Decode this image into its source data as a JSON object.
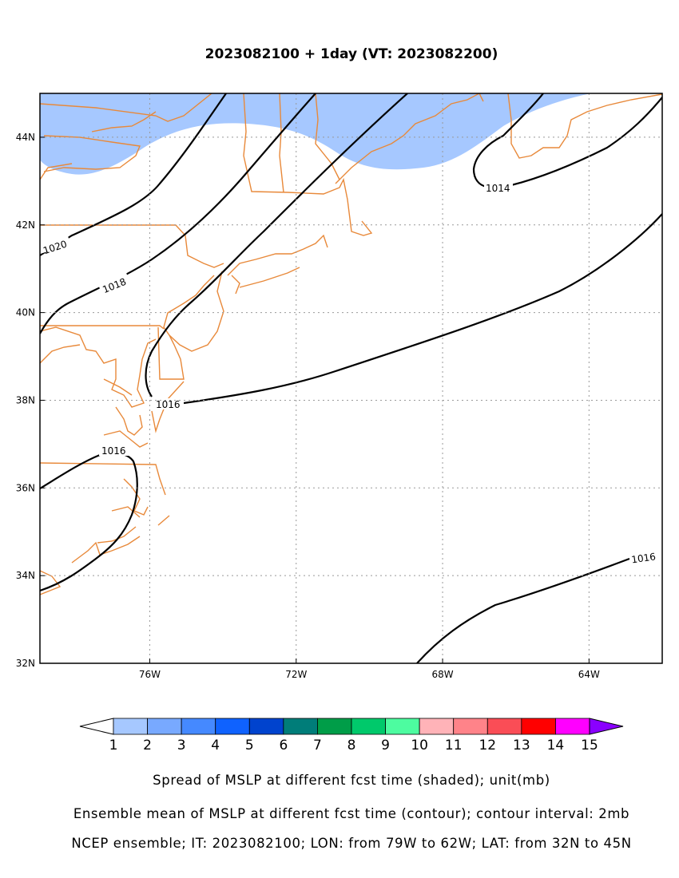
{
  "title": "2023082100 + 1day (VT: 2023082200)",
  "axes": {
    "lon_range": [
      -79,
      -62
    ],
    "lat_range": [
      32,
      45
    ],
    "x_ticks": [
      {
        "lon": -76,
        "label": "76W"
      },
      {
        "lon": -72,
        "label": "72W"
      },
      {
        "lon": -68,
        "label": "68W"
      },
      {
        "lon": -64,
        "label": "64W"
      }
    ],
    "y_ticks": [
      {
        "lat": 44,
        "label": "44N"
      },
      {
        "lat": 42,
        "label": "42N"
      },
      {
        "lat": 40,
        "label": "40N"
      },
      {
        "lat": 38,
        "label": "38N"
      },
      {
        "lat": 36,
        "label": "36N"
      },
      {
        "lat": 34,
        "label": "34N"
      },
      {
        "lat": 32,
        "label": "32N"
      }
    ],
    "grid": "dotted"
  },
  "contour_labels": [
    "1020",
    "1018",
    "1016",
    "1016",
    "1014",
    "1016"
  ],
  "colorbar": {
    "labels": [
      "1",
      "2",
      "3",
      "4",
      "5",
      "6",
      "7",
      "8",
      "9",
      "10",
      "11",
      "12",
      "13",
      "14",
      "15"
    ],
    "colors": [
      "#ffffff",
      "#a6c8ff",
      "#78a9ff",
      "#4589ff",
      "#0f62fe",
      "#0043ce",
      "#007d79",
      "#009d48",
      "#00c96b",
      "#4dfca0",
      "#ffb3b8",
      "#ff8389",
      "#fa4d56",
      "#ff0000",
      "#ff00ff",
      "#8a00ff"
    ]
  },
  "shading_color": "#a6c8ff",
  "coast_color": "#e8893a",
  "captions": {
    "line1": "Spread of MSLP at different fcst time (shaded); unit(mb)",
    "line2": "Ensemble mean of MSLP at different fcst time (contour); contour interval: 2mb",
    "line3": "NCEP ensemble; IT: 2023082100; LON: from 79W to 62W; LAT: from 32N to 45N"
  }
}
